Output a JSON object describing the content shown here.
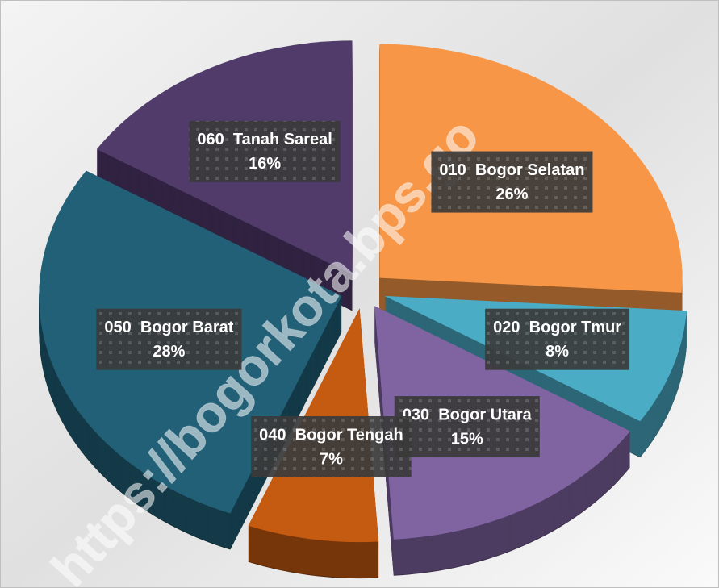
{
  "chart_data": {
    "type": "pie",
    "categories": [
      "010  Bogor Selatan",
      "020  Bogor Tmur",
      "030  Bogor Utara",
      "040  Bogor Tengah",
      "050  Bogor Barat",
      "060  Tanah Sareal"
    ],
    "values": [
      26,
      8,
      15,
      7,
      28,
      16
    ],
    "value_labels": [
      "26%",
      "8%",
      "15%",
      "7%",
      "28%",
      "16%"
    ],
    "colors": [
      "#f79646",
      "#4bacc6",
      "#8064a2",
      "#c55a11",
      "#226078",
      "#503b6b"
    ],
    "watermark": "https://bogorkota.bps.go"
  }
}
